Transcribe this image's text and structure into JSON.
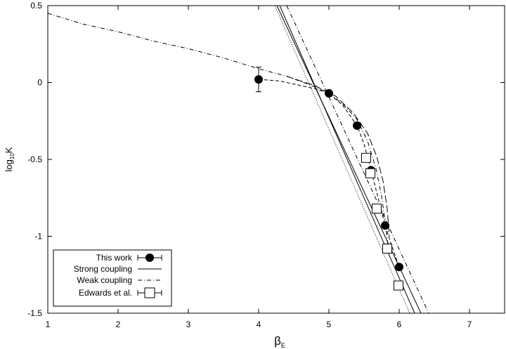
{
  "chart_data": {
    "type": "scatter",
    "xlabel": "β",
    "xlabel_sub": "E",
    "ylabel": "log",
    "ylabel_sub": "10",
    "ylabel_suffix": "K",
    "xlim": [
      1,
      7.5
    ],
    "ylim": [
      -1.5,
      0.5
    ],
    "xticks": [
      1,
      2,
      3,
      4,
      5,
      6,
      7
    ],
    "yticks": [
      0.5,
      0,
      -0.5,
      -1,
      -1.5
    ],
    "xtick_labels": [
      "1",
      "2",
      "3",
      "4",
      "5",
      "6",
      "7"
    ],
    "ytick_labels": [
      "0.5",
      "0",
      "-0.5",
      "-1",
      "-1.5"
    ],
    "grid": false,
    "legend_position": "bottom-left",
    "series": [
      {
        "name": "This work",
        "kind": "points",
        "marker": "filled-circle",
        "error_style": "x-errorbars",
        "points": [
          {
            "x": 4.0,
            "y": 0.02,
            "ylo": -0.06,
            "yhi": 0.1
          },
          {
            "x": 5.0,
            "y": -0.07
          },
          {
            "x": 5.4,
            "y": -0.28
          },
          {
            "x": 5.6,
            "y": -0.57
          },
          {
            "x": 5.8,
            "y": -0.93
          },
          {
            "x": 6.0,
            "y": -1.2
          }
        ]
      },
      {
        "name": "Strong coupling",
        "kind": "line",
        "dash": "solid",
        "points": [
          {
            "x": 4.26,
            "y": 0.5
          },
          {
            "x": 6.31,
            "y": -1.5
          }
        ]
      },
      {
        "name": "Weak coupling",
        "kind": "line",
        "dash": "dash-dot",
        "points": [
          {
            "x": 1.0,
            "y": 0.45
          },
          {
            "x": 1.5,
            "y": 0.38
          },
          {
            "x": 2.0,
            "y": 0.33
          },
          {
            "x": 2.5,
            "y": 0.27
          },
          {
            "x": 3.0,
            "y": 0.22
          },
          {
            "x": 3.5,
            "y": 0.16
          },
          {
            "x": 4.0,
            "y": 0.09
          },
          {
            "x": 4.4,
            "y": 0.04
          },
          {
            "x": 4.7,
            "y": -0.01
          },
          {
            "x": 5.0,
            "y": -0.07
          },
          {
            "x": 5.2,
            "y": -0.14
          },
          {
            "x": 5.4,
            "y": -0.24
          },
          {
            "x": 5.55,
            "y": -0.38
          },
          {
            "x": 5.67,
            "y": -0.56
          },
          {
            "x": 5.75,
            "y": -0.74
          },
          {
            "x": 5.81,
            "y": -0.94
          },
          {
            "x": 5.84,
            "y": -1.06
          }
        ]
      },
      {
        "name": "Edwards et al.",
        "kind": "points",
        "marker": "open-square",
        "error_style": "x-errorbars",
        "points": [
          {
            "x": 5.53,
            "y": -0.49
          },
          {
            "x": 5.59,
            "y": -0.59
          },
          {
            "x": 5.68,
            "y": -0.82
          },
          {
            "x": 5.83,
            "y": -1.08
          },
          {
            "x": 5.99,
            "y": -1.32
          }
        ]
      }
    ],
    "extra_curves": [
      {
        "kind": "line",
        "dash": "dashed-through-this-work",
        "points": [
          {
            "x": 4.0,
            "y": 0.02
          },
          {
            "x": 4.3,
            "y": 0.01
          },
          {
            "x": 4.6,
            "y": -0.02
          },
          {
            "x": 4.8,
            "y": -0.04
          },
          {
            "x": 5.0,
            "y": -0.07
          },
          {
            "x": 5.2,
            "y": -0.15
          },
          {
            "x": 5.4,
            "y": -0.28
          },
          {
            "x": 5.5,
            "y": -0.4
          },
          {
            "x": 5.6,
            "y": -0.57
          },
          {
            "x": 5.7,
            "y": -0.75
          },
          {
            "x": 5.8,
            "y": -0.93
          },
          {
            "x": 5.9,
            "y": -1.07
          },
          {
            "x": 6.0,
            "y": -1.2
          }
        ]
      },
      {
        "kind": "line",
        "dash": "dashed-long",
        "points": [
          {
            "x": 4.4,
            "y": 0.04
          },
          {
            "x": 4.8,
            "y": -0.02
          },
          {
            "x": 5.1,
            "y": -0.09
          },
          {
            "x": 5.35,
            "y": -0.2
          },
          {
            "x": 5.55,
            "y": -0.33
          },
          {
            "x": 5.68,
            "y": -0.48
          },
          {
            "x": 5.77,
            "y": -0.64
          },
          {
            "x": 5.83,
            "y": -0.82
          },
          {
            "x": 5.86,
            "y": -1.0
          }
        ]
      },
      {
        "kind": "line",
        "dash": "dotted",
        "points": [
          {
            "x": 4.23,
            "y": 0.5
          },
          {
            "x": 6.15,
            "y": -1.5
          }
        ]
      },
      {
        "kind": "line",
        "dash": "solid-thin",
        "points": [
          {
            "x": 4.3,
            "y": 0.5
          },
          {
            "x": 6.22,
            "y": -1.5
          }
        ]
      },
      {
        "kind": "line",
        "dash": "dash-dot",
        "points": [
          {
            "x": 4.4,
            "y": 0.5
          },
          {
            "x": 6.42,
            "y": -1.5
          }
        ]
      }
    ]
  }
}
